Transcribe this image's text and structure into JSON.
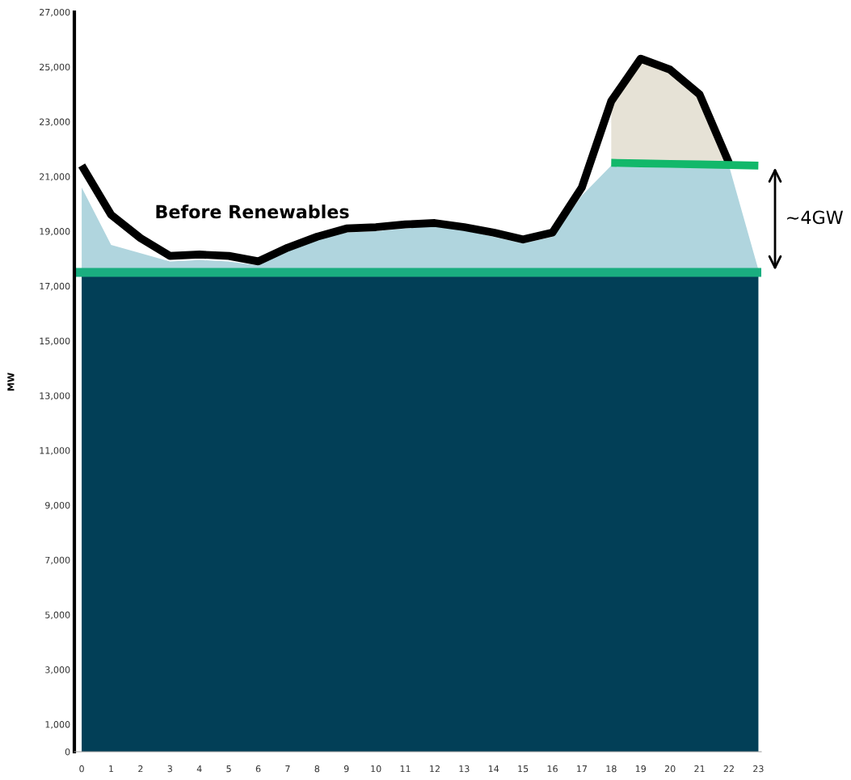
{
  "chart_data": {
    "type": "area",
    "ylabel": "MW",
    "categories": [
      "0",
      "1",
      "2",
      "3",
      "4",
      "5",
      "6",
      "7",
      "8",
      "9",
      "10",
      "11",
      "12",
      "13",
      "14",
      "15",
      "16",
      "17",
      "18",
      "19",
      "20",
      "21",
      "22",
      "23"
    ],
    "ylim": [
      0,
      27000
    ],
    "yticks": [
      0,
      {
        "value": 1000,
        "label": "1,000"
      },
      {
        "value": 3000,
        "label": "3,000"
      },
      {
        "value": 5000,
        "label": "5,000"
      },
      {
        "value": 7000,
        "label": "7,000"
      },
      {
        "value": 9000,
        "label": "9,000"
      },
      {
        "value": 11000,
        "label": "11,000"
      },
      {
        "value": 13000,
        "label": "13,000"
      },
      {
        "value": 15000,
        "label": "15,000"
      },
      {
        "value": 17000,
        "label": "17,000"
      },
      {
        "value": 19000,
        "label": "19,000"
      },
      {
        "value": 21000,
        "label": "21,000"
      },
      {
        "value": 23000,
        "label": "23,000"
      },
      {
        "value": 25000,
        "label": "25,000"
      },
      {
        "value": 27000,
        "label": "27,000"
      }
    ],
    "series": [
      {
        "color": "#e6e2d6",
        "values": [
          null,
          null,
          null,
          null,
          null,
          null,
          null,
          null,
          null,
          null,
          null,
          null,
          null,
          null,
          null,
          null,
          null,
          null,
          23750,
          25300,
          24900,
          24000,
          21500,
          null
        ]
      },
      {
        "color": "#b0d5de",
        "values": [
          20600,
          18500,
          18200,
          17900,
          17950,
          17900,
          17750,
          18300,
          18700,
          18950,
          19000,
          19100,
          19200,
          19050,
          18800,
          18550,
          18800,
          20300,
          21400,
          21400,
          21400,
          21400,
          21400,
          17600
        ]
      },
      {
        "color": "#023f57",
        "values": [
          17400,
          17400,
          17400,
          17400,
          17400,
          17400,
          17400,
          17400,
          17400,
          17400,
          17400,
          17400,
          17400,
          17400,
          17400,
          17400,
          17400,
          17400,
          17400,
          17400,
          17400,
          17400,
          17400,
          17400
        ]
      },
      {
        "type": "line",
        "color": "#000000",
        "values": [
          21400,
          19600,
          18750,
          18100,
          18150,
          18100,
          17900,
          18400,
          18800,
          19100,
          19150,
          19250,
          19300,
          19150,
          18950,
          18700,
          18950,
          20600,
          23750,
          25300,
          24900,
          24000,
          21500,
          null
        ]
      },
      {
        "type": "line",
        "color": "#12b86a",
        "values": [
          null,
          null,
          null,
          null,
          null,
          null,
          null,
          null,
          null,
          null,
          null,
          null,
          null,
          null,
          null,
          null,
          null,
          null,
          21500,
          21480,
          21460,
          21440,
          21420,
          21400
        ]
      }
    ],
    "ref_lines": [
      {
        "axis": "y",
        "value": 17500,
        "color": "#1aae80"
      }
    ],
    "annotations": [
      "Before Renewables",
      "~4GW"
    ],
    "grid": false,
    "legend": false
  }
}
